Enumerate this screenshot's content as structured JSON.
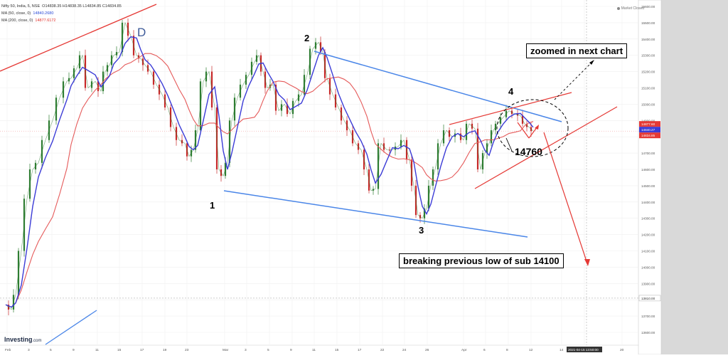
{
  "header": {
    "symbol": "Nifty 50, India, 5, NSE",
    "ohlc": "O14838.35 H14838.35 L14834.85 C14834.85",
    "ma1_label": "MA (50, close, 0)",
    "ma1_value": "14840.2680",
    "ma2_label": "MA (200, close, 0)",
    "ma2_value": "14877.6172"
  },
  "market_status": "Market Closed",
  "logo": {
    "name": "Investing",
    "suffix": ".com"
  },
  "annotations": {
    "wave_d": "D",
    "wave_1": "1",
    "wave_2": "2",
    "wave_3": "3",
    "wave_4": "4",
    "level_label": "14760",
    "zoom_note": "zoomed in next chart",
    "break_note": "breaking previous low of sub 14100"
  },
  "colors": {
    "price": "#2e7d32",
    "ma_fast": "#3b3bd6",
    "ma_slow": "#e55a5a",
    "trend_blue": "#4a86e8",
    "trend_red": "#e53935",
    "background": "#ffffff",
    "right_panel": "#d9d9d9"
  },
  "chart_data": {
    "type": "line",
    "title": "Nifty 50, India, 5, NSE",
    "xlabel": "",
    "ylabel": "",
    "ylim": [
      13550,
      15700
    ],
    "grid": true,
    "x_ticks": [
      "Feb",
      "3",
      "5",
      "9",
      "11",
      "15",
      "17",
      "19",
      "23",
      "Mar",
      "3",
      "5",
      "9",
      "11",
      "15",
      "17",
      "22",
      "24",
      "26",
      "Apr",
      "6",
      "8",
      "12",
      "14",
      "16",
      "20"
    ],
    "x_time_label": "2021-04-15 13:50:00",
    "y_ticks": [
      "15600.00",
      "15500.00",
      "15400.00",
      "15300.00",
      "15200.00",
      "15100.00",
      "15000.00",
      "14900.00",
      "14800.00",
      "14700.00",
      "14600.00",
      "14500.00",
      "14400.00",
      "14300.00",
      "14200.00",
      "14100.00",
      "14000.00",
      "13900.00",
      "13800.00",
      "13700.00",
      "13600.00"
    ],
    "price_tags": [
      {
        "label": "14877.60",
        "color": "#e53935"
      },
      {
        "label": "14840.27",
        "color": "#3b3bd6"
      },
      {
        "label": "14834.85",
        "color": "#e53935"
      }
    ],
    "reference_tag": "13810.00",
    "series": [
      {
        "name": "Nifty 50",
        "x": [
          0,
          8,
          14,
          22,
          30,
          38,
          46,
          56,
          66,
          76,
          86,
          92,
          100,
          108,
          116,
          126,
          134,
          140,
          146,
          152,
          160,
          168,
          176,
          184,
          190,
          196,
          204,
          212,
          220,
          228,
          236,
          244,
          252,
          258,
          264,
          270,
          278,
          286,
          294,
          300,
          306,
          312,
          318,
          326,
          334,
          342,
          350,
          356,
          362,
          368,
          376,
          384,
          392,
          400,
          408,
          416,
          424,
          432,
          440,
          446,
          452,
          460,
          468,
          476,
          484,
          492,
          500,
          508,
          514,
          520,
          528,
          536,
          544,
          552,
          560,
          568,
          574,
          580,
          586,
          592,
          598,
          604,
          612,
          620,
          628,
          636,
          644,
          652,
          660,
          668,
          674,
          680,
          686,
          692,
          700,
          708,
          716,
          724,
          730,
          736,
          742
        ],
        "values": [
          13770,
          13740,
          13830,
          14100,
          14420,
          14600,
          14640,
          14780,
          14900,
          15040,
          15140,
          15160,
          15220,
          15300,
          15100,
          15140,
          15080,
          15200,
          15240,
          15300,
          15320,
          15500,
          15420,
          15300,
          15280,
          15240,
          15200,
          15120,
          15060,
          14980,
          14860,
          14780,
          14760,
          14680,
          14720,
          14840,
          15140,
          15200,
          14980,
          14600,
          14560,
          14640,
          14900,
          15040,
          15120,
          15180,
          15260,
          15300,
          15200,
          15100,
          15120,
          14960,
          15000,
          14940,
          15020,
          15060,
          15180,
          15340,
          15380,
          15320,
          15160,
          15060,
          14980,
          14900,
          14840,
          14760,
          14720,
          14600,
          14470,
          14480,
          14760,
          14720,
          14720,
          14740,
          14780,
          14660,
          14500,
          14320,
          14300,
          14360,
          14500,
          14600,
          14760,
          14840,
          14800,
          14820,
          14780,
          14880,
          14850,
          14600,
          14700,
          14760,
          14840,
          14880,
          14920,
          14960,
          14940,
          14930,
          14880,
          14860,
          14835
        ]
      }
    ]
  }
}
